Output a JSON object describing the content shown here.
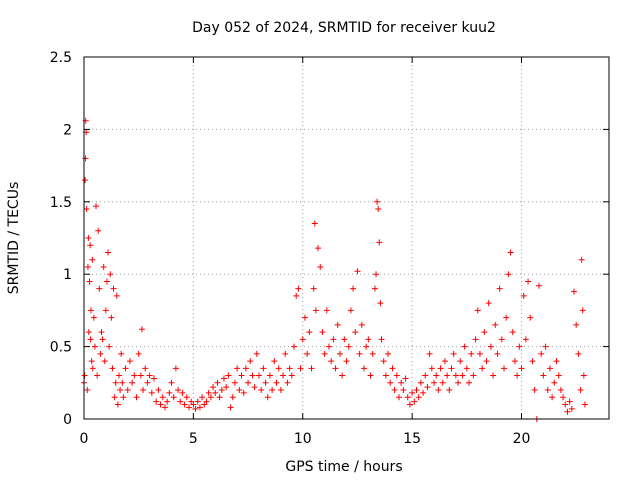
{
  "chart_data": {
    "type": "scatter",
    "title": "Day 052 of 2024, SRMTID for receiver kuu2",
    "xlabel": "GPS time / hours",
    "ylabel": "SRMTID / TECUs",
    "xlim": [
      0,
      24
    ],
    "ylim": [
      0,
      2.5
    ],
    "xticks": [
      0,
      5,
      10,
      15,
      20
    ],
    "yticks": [
      0,
      0.5,
      1,
      1.5,
      2,
      2.5
    ],
    "xtick_labels": [
      "0",
      "5",
      "10",
      "15",
      "20"
    ],
    "ytick_labels": [
      "0",
      "0.5",
      "1",
      "1.5",
      "2",
      "2.5"
    ],
    "grid": true,
    "marker": "plus",
    "series": [
      {
        "name": "kuu2",
        "color": "#ff0000",
        "points": [
          [
            0.0,
            0.25
          ],
          [
            0.03,
            0.3
          ],
          [
            0.05,
            1.65
          ],
          [
            0.07,
            1.8
          ],
          [
            0.08,
            2.06
          ],
          [
            0.1,
            1.98
          ],
          [
            0.12,
            1.45
          ],
          [
            0.15,
            0.2
          ],
          [
            0.18,
            1.05
          ],
          [
            0.2,
            1.25
          ],
          [
            0.22,
            0.6
          ],
          [
            0.25,
            0.95
          ],
          [
            0.28,
            1.2
          ],
          [
            0.3,
            0.55
          ],
          [
            0.32,
            0.75
          ],
          [
            0.35,
            0.4
          ],
          [
            0.38,
            1.1
          ],
          [
            0.4,
            0.35
          ],
          [
            0.45,
            0.7
          ],
          [
            0.5,
            0.5
          ],
          [
            0.55,
            1.47
          ],
          [
            0.6,
            0.3
          ],
          [
            0.65,
            1.3
          ],
          [
            0.7,
            0.9
          ],
          [
            0.75,
            0.45
          ],
          [
            0.8,
            0.6
          ],
          [
            0.85,
            0.55
          ],
          [
            0.9,
            1.05
          ],
          [
            0.95,
            0.4
          ],
          [
            1.0,
            0.75
          ],
          [
            1.05,
            0.95
          ],
          [
            1.1,
            1.15
          ],
          [
            1.15,
            0.5
          ],
          [
            1.2,
            1.0
          ],
          [
            1.25,
            0.7
          ],
          [
            1.3,
            0.35
          ],
          [
            1.35,
            0.9
          ],
          [
            1.4,
            0.15
          ],
          [
            1.45,
            0.25
          ],
          [
            1.5,
            0.85
          ],
          [
            1.55,
            0.1
          ],
          [
            1.6,
            0.3
          ],
          [
            1.65,
            0.2
          ],
          [
            1.7,
            0.45
          ],
          [
            1.75,
            0.25
          ],
          [
            1.8,
            0.15
          ],
          [
            1.9,
            0.35
          ],
          [
            2.0,
            0.2
          ],
          [
            2.1,
            0.4
          ],
          [
            2.2,
            0.25
          ],
          [
            2.3,
            0.3
          ],
          [
            2.4,
            0.15
          ],
          [
            2.5,
            0.45
          ],
          [
            2.6,
            0.3
          ],
          [
            2.65,
            0.62
          ],
          [
            2.7,
            0.2
          ],
          [
            2.8,
            0.35
          ],
          [
            2.9,
            0.25
          ],
          [
            3.0,
            0.3
          ],
          [
            3.1,
            0.18
          ],
          [
            3.2,
            0.28
          ],
          [
            3.3,
            0.12
          ],
          [
            3.4,
            0.2
          ],
          [
            3.5,
            0.1
          ],
          [
            3.6,
            0.15
          ],
          [
            3.7,
            0.08
          ],
          [
            3.8,
            0.12
          ],
          [
            3.9,
            0.18
          ],
          [
            4.0,
            0.25
          ],
          [
            4.1,
            0.15
          ],
          [
            4.2,
            0.35
          ],
          [
            4.3,
            0.2
          ],
          [
            4.4,
            0.12
          ],
          [
            4.5,
            0.18
          ],
          [
            4.6,
            0.1
          ],
          [
            4.7,
            0.15
          ],
          [
            4.8,
            0.08
          ],
          [
            4.9,
            0.12
          ],
          [
            5.0,
            0.1
          ],
          [
            5.1,
            0.07
          ],
          [
            5.2,
            0.12
          ],
          [
            5.3,
            0.08
          ],
          [
            5.4,
            0.15
          ],
          [
            5.5,
            0.1
          ],
          [
            5.6,
            0.12
          ],
          [
            5.7,
            0.18
          ],
          [
            5.8,
            0.15
          ],
          [
            5.9,
            0.22
          ],
          [
            6.0,
            0.18
          ],
          [
            6.1,
            0.25
          ],
          [
            6.2,
            0.15
          ],
          [
            6.3,
            0.2
          ],
          [
            6.4,
            0.28
          ],
          [
            6.5,
            0.22
          ],
          [
            6.6,
            0.3
          ],
          [
            6.7,
            0.08
          ],
          [
            6.8,
            0.15
          ],
          [
            6.9,
            0.25
          ],
          [
            7.0,
            0.35
          ],
          [
            7.1,
            0.2
          ],
          [
            7.2,
            0.3
          ],
          [
            7.3,
            0.18
          ],
          [
            7.4,
            0.35
          ],
          [
            7.5,
            0.25
          ],
          [
            7.6,
            0.4
          ],
          [
            7.7,
            0.3
          ],
          [
            7.8,
            0.22
          ],
          [
            7.9,
            0.45
          ],
          [
            8.0,
            0.3
          ],
          [
            8.1,
            0.2
          ],
          [
            8.2,
            0.35
          ],
          [
            8.3,
            0.25
          ],
          [
            8.4,
            0.15
          ],
          [
            8.5,
            0.3
          ],
          [
            8.6,
            0.2
          ],
          [
            8.7,
            0.4
          ],
          [
            8.8,
            0.25
          ],
          [
            8.9,
            0.35
          ],
          [
            9.0,
            0.2
          ],
          [
            9.1,
            0.3
          ],
          [
            9.2,
            0.45
          ],
          [
            9.3,
            0.25
          ],
          [
            9.4,
            0.35
          ],
          [
            9.5,
            0.3
          ],
          [
            9.6,
            0.5
          ],
          [
            9.7,
            0.85
          ],
          [
            9.8,
            0.9
          ],
          [
            9.9,
            0.35
          ],
          [
            10.0,
            0.55
          ],
          [
            10.1,
            0.7
          ],
          [
            10.2,
            0.45
          ],
          [
            10.3,
            0.6
          ],
          [
            10.4,
            0.35
          ],
          [
            10.5,
            0.9
          ],
          [
            10.55,
            1.35
          ],
          [
            10.6,
            0.75
          ],
          [
            10.7,
            1.18
          ],
          [
            10.8,
            1.05
          ],
          [
            10.9,
            0.6
          ],
          [
            11.0,
            0.45
          ],
          [
            11.1,
            0.75
          ],
          [
            11.2,
            0.5
          ],
          [
            11.3,
            0.4
          ],
          [
            11.4,
            0.55
          ],
          [
            11.5,
            0.35
          ],
          [
            11.6,
            0.65
          ],
          [
            11.7,
            0.45
          ],
          [
            11.8,
            0.3
          ],
          [
            11.9,
            0.55
          ],
          [
            12.0,
            0.4
          ],
          [
            12.1,
            0.5
          ],
          [
            12.2,
            0.75
          ],
          [
            12.3,
            0.9
          ],
          [
            12.4,
            0.6
          ],
          [
            12.5,
            1.02
          ],
          [
            12.6,
            0.45
          ],
          [
            12.7,
            0.65
          ],
          [
            12.8,
            0.35
          ],
          [
            12.9,
            0.5
          ],
          [
            13.0,
            0.55
          ],
          [
            13.1,
            0.3
          ],
          [
            13.2,
            0.45
          ],
          [
            13.3,
            0.9
          ],
          [
            13.35,
            1.0
          ],
          [
            13.4,
            1.5
          ],
          [
            13.45,
            1.45
          ],
          [
            13.5,
            1.22
          ],
          [
            13.55,
            0.8
          ],
          [
            13.6,
            0.55
          ],
          [
            13.7,
            0.4
          ],
          [
            13.8,
            0.3
          ],
          [
            13.9,
            0.45
          ],
          [
            14.0,
            0.25
          ],
          [
            14.1,
            0.35
          ],
          [
            14.2,
            0.2
          ],
          [
            14.3,
            0.3
          ],
          [
            14.4,
            0.15
          ],
          [
            14.5,
            0.25
          ],
          [
            14.6,
            0.2
          ],
          [
            14.7,
            0.28
          ],
          [
            14.8,
            0.15
          ],
          [
            14.9,
            0.1
          ],
          [
            15.0,
            0.18
          ],
          [
            15.1,
            0.12
          ],
          [
            15.2,
            0.2
          ],
          [
            15.3,
            0.15
          ],
          [
            15.4,
            0.25
          ],
          [
            15.5,
            0.18
          ],
          [
            15.6,
            0.3
          ],
          [
            15.7,
            0.22
          ],
          [
            15.8,
            0.45
          ],
          [
            15.9,
            0.35
          ],
          [
            16.0,
            0.25
          ],
          [
            16.1,
            0.3
          ],
          [
            16.2,
            0.2
          ],
          [
            16.3,
            0.35
          ],
          [
            16.4,
            0.25
          ],
          [
            16.5,
            0.4
          ],
          [
            16.6,
            0.3
          ],
          [
            16.7,
            0.2
          ],
          [
            16.8,
            0.35
          ],
          [
            16.9,
            0.45
          ],
          [
            17.0,
            0.3
          ],
          [
            17.1,
            0.25
          ],
          [
            17.2,
            0.4
          ],
          [
            17.3,
            0.3
          ],
          [
            17.4,
            0.5
          ],
          [
            17.5,
            0.35
          ],
          [
            17.6,
            0.25
          ],
          [
            17.7,
            0.45
          ],
          [
            17.8,
            0.3
          ],
          [
            17.9,
            0.55
          ],
          [
            18.0,
            0.75
          ],
          [
            18.1,
            0.45
          ],
          [
            18.2,
            0.35
          ],
          [
            18.3,
            0.6
          ],
          [
            18.4,
            0.4
          ],
          [
            18.5,
            0.8
          ],
          [
            18.6,
            0.5
          ],
          [
            18.7,
            0.3
          ],
          [
            18.8,
            0.65
          ],
          [
            18.9,
            0.45
          ],
          [
            19.0,
            0.9
          ],
          [
            19.1,
            0.55
          ],
          [
            19.2,
            0.35
          ],
          [
            19.3,
            0.7
          ],
          [
            19.4,
            1.0
          ],
          [
            19.5,
            1.15
          ],
          [
            19.6,
            0.6
          ],
          [
            19.7,
            0.4
          ],
          [
            19.8,
            0.3
          ],
          [
            19.9,
            0.5
          ],
          [
            20.0,
            0.35
          ],
          [
            20.1,
            0.85
          ],
          [
            20.2,
            0.55
          ],
          [
            20.3,
            0.95
          ],
          [
            20.4,
            0.7
          ],
          [
            20.5,
            0.4
          ],
          [
            20.6,
            0.2
          ],
          [
            20.7,
            0.0
          ],
          [
            20.8,
            0.92
          ],
          [
            20.9,
            0.45
          ],
          [
            21.0,
            0.3
          ],
          [
            21.1,
            0.5
          ],
          [
            21.2,
            0.2
          ],
          [
            21.3,
            0.35
          ],
          [
            21.4,
            0.15
          ],
          [
            21.5,
            0.25
          ],
          [
            21.6,
            0.4
          ],
          [
            21.7,
            0.3
          ],
          [
            21.8,
            0.2
          ],
          [
            21.9,
            0.15
          ],
          [
            22.0,
            0.1
          ],
          [
            22.1,
            0.05
          ],
          [
            22.2,
            0.12
          ],
          [
            22.3,
            0.07
          ],
          [
            22.4,
            0.88
          ],
          [
            22.5,
            0.65
          ],
          [
            22.6,
            0.45
          ],
          [
            22.7,
            0.2
          ],
          [
            22.75,
            1.1
          ],
          [
            22.8,
            0.75
          ],
          [
            22.85,
            0.3
          ],
          [
            22.9,
            0.1
          ]
        ]
      }
    ]
  }
}
